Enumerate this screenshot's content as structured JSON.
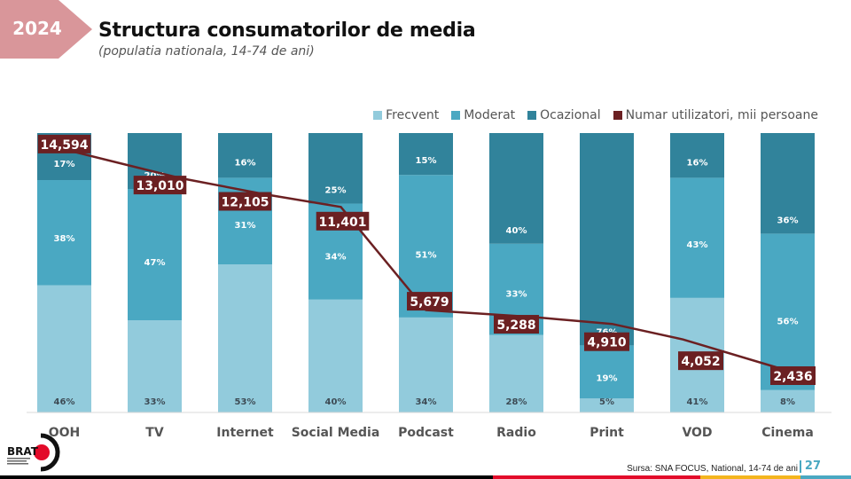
{
  "header": {
    "year": "2024",
    "title": "Structura consumatorilor de media",
    "subtitle": "(populatia nationala, 14-74 de ani)"
  },
  "colors": {
    "badge": "#d9969a",
    "frecvent": "#92cbdc",
    "moderat": "#4aa8c2",
    "ocazional": "#31839b",
    "users": "#6b2022",
    "bar_black": "#000000",
    "bar_red": "#e30b2a",
    "bar_yellow": "#f4b51e",
    "bar_teal": "#4aa8c2"
  },
  "chart_data": {
    "type": "bar",
    "stacked": true,
    "title": "Structura consumatorilor de media",
    "subtitle": "(populatia nationala, 14-74 de ani)",
    "categories": [
      "OOH",
      "TV",
      "Internet",
      "Social Media",
      "Podcast",
      "Radio",
      "Print",
      "VOD",
      "Cinema"
    ],
    "series": [
      {
        "name": "Frecvent",
        "unit": "%",
        "values": [
          46,
          33,
          53,
          40,
          34,
          28,
          5,
          41,
          8
        ]
      },
      {
        "name": "Moderat",
        "unit": "%",
        "values": [
          38,
          47,
          31,
          34,
          51,
          33,
          19,
          43,
          56
        ]
      },
      {
        "name": "Ocazional",
        "unit": "%",
        "values": [
          17,
          20,
          16,
          25,
          15,
          40,
          76,
          16,
          36
        ]
      }
    ],
    "line_series": {
      "name": "Numar utilizatori, mii persoane",
      "type": "line",
      "values": [
        14594,
        13010,
        12105,
        11401,
        5679,
        5288,
        4910,
        4052,
        2436
      ],
      "labels": [
        "14,594",
        "13,010",
        "12,105",
        "11,401",
        "5,679",
        "5,288",
        "4,910",
        "4,052",
        "2,436"
      ]
    },
    "ylim": [
      0,
      100
    ],
    "y2lim": [
      0,
      15500
    ],
    "grid": false,
    "legend_position": "top-right",
    "xlabel": "",
    "ylabel": ""
  },
  "legend": [
    {
      "label": "Frecvent",
      "color": "#92cbdc"
    },
    {
      "label": "Moderat",
      "color": "#4aa8c2"
    },
    {
      "label": "Ocazional",
      "color": "#31839b"
    },
    {
      "label": "Numar utilizatori, mii persoane",
      "color": "#6b2022"
    }
  ],
  "footer": {
    "source": "Sursa: SNA FOCUS, National, 14-74 de ani",
    "page": "27",
    "logo_text": "BRAT"
  }
}
